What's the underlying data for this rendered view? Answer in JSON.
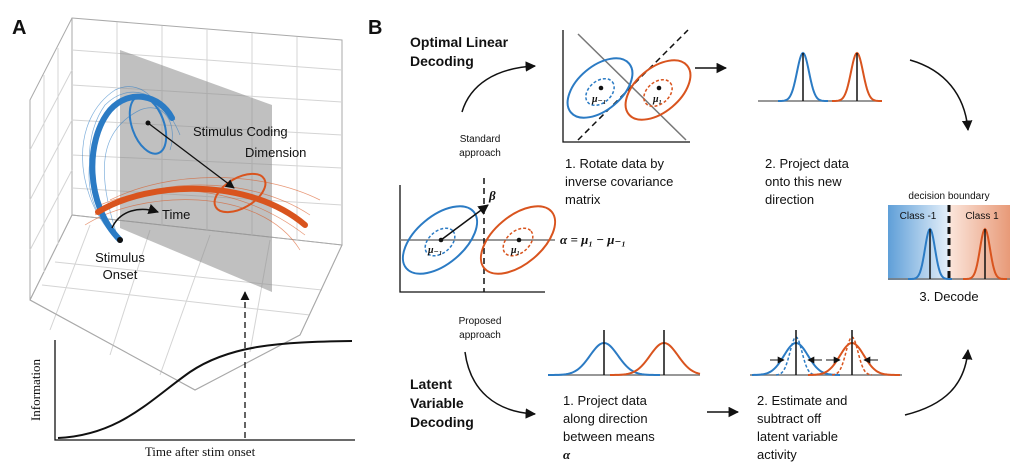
{
  "panel_a": {
    "label": "A",
    "plane_label": [
      "Stimulus Coding",
      "Dimension"
    ],
    "time_label": "Time",
    "onset_label": [
      "Stimulus",
      "Onset"
    ],
    "info_plot": {
      "y_label": "Information",
      "x_label": "Time after stim onset"
    }
  },
  "panel_b": {
    "label": "B",
    "standard": {
      "title": [
        "Optimal Linear",
        "Decoding"
      ],
      "approach": [
        "Standard",
        "approach"
      ],
      "rotate_plot": {
        "mu_neg": "μ₋₁",
        "mu_pos": "μ₁"
      },
      "step1": [
        "1. Rotate data by",
        "inverse covariance",
        "matrix"
      ],
      "step2": [
        "2. Project data",
        "onto this new",
        "direction"
      ]
    },
    "center_plot": {
      "beta": "β",
      "mu_neg": "μ₋₁",
      "mu_pos": "μ₁",
      "equation": "α = μ₁ − μ₋₁"
    },
    "decode": {
      "boundary_label": "decision boundary",
      "class_neg": "Class -1",
      "class_pos": "Class 1",
      "step3": "3. Decode"
    },
    "proposed": {
      "title": [
        "Latent",
        "Variable",
        "Decoding"
      ],
      "approach": [
        "Proposed",
        "approach"
      ],
      "step1": [
        "1. Project data",
        "along direction",
        "between means",
        "α"
      ],
      "step2": [
        "2. Estimate and",
        "subtract off",
        "latent variable",
        "activity"
      ]
    }
  }
}
